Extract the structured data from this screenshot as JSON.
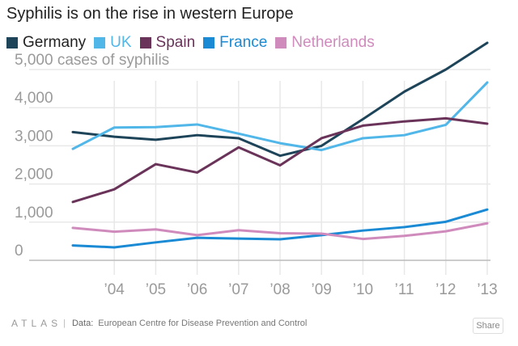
{
  "chart_data": {
    "type": "line",
    "title": "Syphilis is on the rise in western Europe",
    "ylabel": "cases of syphilis",
    "ylim": [
      0,
      5000
    ],
    "yticks": [
      {
        "value": 0,
        "label": "0"
      },
      {
        "value": 1000,
        "label": "1,000"
      },
      {
        "value": 2000,
        "label": "2,000"
      },
      {
        "value": 3000,
        "label": "3,000"
      },
      {
        "value": 4000,
        "label": "4,000"
      },
      {
        "value": 5000,
        "label": "5,000 cases of syphilis"
      }
    ],
    "x": [
      2003,
      2004,
      2005,
      2006,
      2007,
      2008,
      2009,
      2010,
      2011,
      2012,
      2013
    ],
    "xticks": [
      {
        "value": 2004,
        "label": "’04"
      },
      {
        "value": 2005,
        "label": "’05"
      },
      {
        "value": 2006,
        "label": "’06"
      },
      {
        "value": 2007,
        "label": "’07"
      },
      {
        "value": 2008,
        "label": "’08"
      },
      {
        "value": 2009,
        "label": "’09"
      },
      {
        "value": 2010,
        "label": "’10"
      },
      {
        "value": 2011,
        "label": "’11"
      },
      {
        "value": 2012,
        "label": "’12"
      },
      {
        "value": 2013,
        "label": "’13"
      }
    ],
    "series": [
      {
        "name": "Germany",
        "color": "#1d4459",
        "values": [
          3360,
          3240,
          3160,
          3280,
          3200,
          2740,
          3000,
          3700,
          4420,
          5000,
          5700
        ]
      },
      {
        "name": "UK",
        "color": "#51b6e8",
        "values": [
          2920,
          3480,
          3490,
          3560,
          3320,
          3070,
          2890,
          3200,
          3280,
          3550,
          4660
        ]
      },
      {
        "name": "Spain",
        "color": "#6a3359",
        "values": [
          1530,
          1860,
          2520,
          2300,
          2960,
          2490,
          3200,
          3530,
          3640,
          3720,
          3580
        ]
      },
      {
        "name": "France",
        "color": "#1a8ad4",
        "values": [
          390,
          340,
          470,
          590,
          570,
          550,
          660,
          780,
          870,
          1010,
          1330
        ]
      },
      {
        "name": "Netherlands",
        "color": "#d08bbd",
        "values": [
          850,
          750,
          810,
          660,
          790,
          710,
          700,
          560,
          640,
          760,
          970
        ]
      }
    ],
    "grid": true,
    "legend": "top-left"
  },
  "footer": {
    "brand": "ATLAS",
    "separator": "|",
    "source_label": "Data:",
    "source": "European Centre for Disease Prevention and Control",
    "share_label": "Share"
  }
}
